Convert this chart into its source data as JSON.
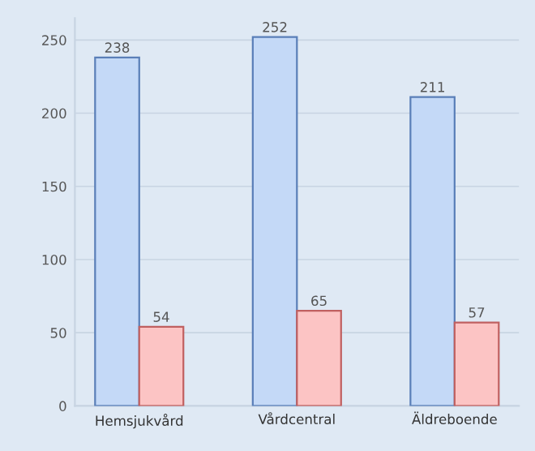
{
  "chart_data": {
    "type": "bar",
    "categories": [
      "Hemsjukvård",
      "Vårdcentral",
      "Äldreboende"
    ],
    "series": [
      {
        "color": "#c4d9f7",
        "values": [
          238,
          252,
          211
        ]
      },
      {
        "color": "#fcc4c4",
        "values": [
          54,
          65,
          57
        ]
      }
    ],
    "ylim": [
      0,
      265
    ],
    "yticks": [
      0,
      50,
      100,
      150,
      200,
      250
    ],
    "grid": "y",
    "data_labels": true
  }
}
